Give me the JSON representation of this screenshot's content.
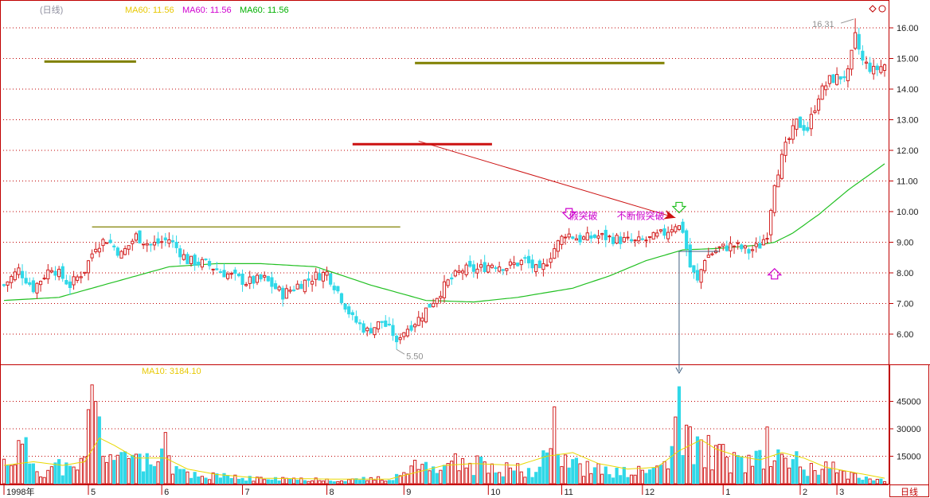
{
  "header": {
    "period_label": "(日线)",
    "ma_labels": [
      {
        "text": "MA60: 11.56",
        "color": "#e8c800"
      },
      {
        "text": "MA60: 11.56",
        "color": "#d000d0"
      },
      {
        "text": "MA60: 11.56",
        "color": "#00b000"
      }
    ],
    "vol_ma_label": "MA10: 3184.10",
    "diamond_icon": "diamond-icon"
  },
  "colors": {
    "up": "#d22020",
    "down": "#30d8e8",
    "ma_price": "#22c022",
    "ma_vol": "#e8d800",
    "axis": "#c00000",
    "grid": "#c00000",
    "level_olive": "#808000",
    "level_red": "#cc1111",
    "annotation": "#cc00cc",
    "tick_text": "#202020"
  },
  "annotations": {
    "low_label": "5.50",
    "high_label": "16.31",
    "false_break": "假突破",
    "repeated_false_break": "不断假突破"
  },
  "chart_data": [
    {
      "type": "candlestick",
      "title": "",
      "ylim": [
        5.3,
        16.5
      ],
      "grid": true,
      "y_ticks": [
        "6.00",
        "7.00",
        "8.00",
        "9.00",
        "10.00",
        "11.00",
        "12.00",
        "13.00",
        "14.00",
        "15.00",
        "16.00"
      ],
      "x_ticks": [
        {
          "label": "1998年",
          "index": 0
        },
        {
          "label": "5",
          "index": 23
        },
        {
          "label": "6",
          "index": 43
        },
        {
          "label": "7",
          "index": 65
        },
        {
          "label": "8",
          "index": 88
        },
        {
          "label": "9",
          "index": 109
        },
        {
          "label": "10",
          "index": 132
        },
        {
          "label": "11",
          "index": 152
        },
        {
          "label": "12",
          "index": 174
        },
        {
          "label": "1",
          "index": 196
        },
        {
          "label": "2",
          "index": 217
        },
        {
          "label": "3",
          "index": 227
        }
      ],
      "price_keypoints": [
        [
          0,
          7.6
        ],
        [
          4,
          8.1
        ],
        [
          8,
          7.5
        ],
        [
          13,
          8.2
        ],
        [
          18,
          7.6
        ],
        [
          22,
          8.1
        ],
        [
          25,
          8.9
        ],
        [
          28,
          9.1
        ],
        [
          32,
          8.6
        ],
        [
          36,
          9.2
        ],
        [
          40,
          8.9
        ],
        [
          45,
          9.1
        ],
        [
          50,
          8.4
        ],
        [
          55,
          8.3
        ],
        [
          60,
          8.0
        ],
        [
          66,
          7.7
        ],
        [
          71,
          7.8
        ],
        [
          76,
          7.3
        ],
        [
          80,
          7.6
        ],
        [
          85,
          7.9
        ],
        [
          88,
          8.0
        ],
        [
          91,
          7.4
        ],
        [
          95,
          6.5
        ],
        [
          99,
          6.1
        ],
        [
          103,
          6.4
        ],
        [
          107,
          5.9
        ],
        [
          110,
          6.2
        ],
        [
          113,
          6.5
        ],
        [
          117,
          7.1
        ],
        [
          121,
          7.7
        ],
        [
          125,
          8.1
        ],
        [
          129,
          8.1
        ],
        [
          133,
          8.3
        ],
        [
          137,
          8.2
        ],
        [
          142,
          8.4
        ],
        [
          146,
          8.0
        ],
        [
          150,
          8.8
        ],
        [
          153,
          9.3
        ],
        [
          157,
          9.1
        ],
        [
          162,
          9.2
        ],
        [
          167,
          9.1
        ],
        [
          172,
          9.0
        ],
        [
          176,
          9.1
        ],
        [
          180,
          9.3
        ],
        [
          183,
          9.6
        ],
        [
          185,
          9.4
        ],
        [
          187,
          8.2
        ],
        [
          189,
          7.7
        ],
        [
          191,
          8.5
        ],
        [
          195,
          8.8
        ],
        [
          199,
          8.9
        ],
        [
          203,
          8.7
        ],
        [
          206,
          8.9
        ],
        [
          208,
          9.3
        ],
        [
          210,
          11.0
        ],
        [
          213,
          12.1
        ],
        [
          216,
          12.9
        ],
        [
          219,
          12.7
        ],
        [
          222,
          13.8
        ],
        [
          225,
          14.3
        ],
        [
          228,
          14.4
        ],
        [
          230,
          14.5
        ],
        [
          232,
          15.7
        ],
        [
          234,
          14.9
        ],
        [
          237,
          14.6
        ],
        [
          240,
          14.8
        ]
      ],
      "special_points": {
        "low": {
          "index": 107,
          "value": 5.5
        },
        "high": {
          "index": 232,
          "value": 16.31
        }
      },
      "ma60_keypoints": [
        [
          0,
          7.1
        ],
        [
          15,
          7.2
        ],
        [
          30,
          7.7
        ],
        [
          45,
          8.2
        ],
        [
          58,
          8.3
        ],
        [
          70,
          8.3
        ],
        [
          85,
          8.2
        ],
        [
          100,
          7.6
        ],
        [
          115,
          7.1
        ],
        [
          128,
          7.05
        ],
        [
          140,
          7.2
        ],
        [
          155,
          7.5
        ],
        [
          165,
          7.9
        ],
        [
          175,
          8.4
        ],
        [
          185,
          8.75
        ],
        [
          195,
          8.8
        ],
        [
          205,
          8.9
        ],
        [
          210,
          9.0
        ],
        [
          215,
          9.3
        ],
        [
          222,
          9.9
        ],
        [
          230,
          10.7
        ],
        [
          240,
          11.56
        ]
      ],
      "levels": [
        {
          "name": "olive-upper-left",
          "value": 14.9,
          "from": 11,
          "to": 36
        },
        {
          "name": "olive-upper-right",
          "value": 14.85,
          "from": 112,
          "to": 180
        },
        {
          "name": "red-mid",
          "value": 12.2,
          "from": 95,
          "to": 133
        },
        {
          "name": "olive-lower",
          "value": 9.5,
          "from": 24,
          "to": 108
        }
      ]
    },
    {
      "type": "bar",
      "title": "volume",
      "ylim": [
        0,
        60000
      ],
      "y_ticks": [
        "15000",
        "30000",
        "45000"
      ],
      "volume_keypoints": [
        [
          0,
          12000
        ],
        [
          5,
          20000
        ],
        [
          10,
          7000
        ],
        [
          15,
          10000
        ],
        [
          20,
          6000
        ],
        [
          22,
          20000
        ],
        [
          24,
          45000
        ],
        [
          26,
          30000
        ],
        [
          28,
          18000
        ],
        [
          32,
          12000
        ],
        [
          35,
          20000
        ],
        [
          40,
          9000
        ],
        [
          44,
          14000
        ],
        [
          48,
          7000
        ],
        [
          55,
          4500
        ],
        [
          65,
          3000
        ],
        [
          75,
          2500
        ],
        [
          85,
          2500
        ],
        [
          95,
          2200
        ],
        [
          105,
          2800
        ],
        [
          112,
          9000
        ],
        [
          120,
          12000
        ],
        [
          130,
          10000
        ],
        [
          138,
          9000
        ],
        [
          145,
          8000
        ],
        [
          148,
          15000
        ],
        [
          152,
          18000
        ],
        [
          156,
          10000
        ],
        [
          160,
          8000
        ],
        [
          168,
          6000
        ],
        [
          176,
          7000
        ],
        [
          182,
          14000
        ],
        [
          184,
          40000
        ],
        [
          186,
          28000
        ],
        [
          188,
          20000
        ],
        [
          192,
          19000
        ],
        [
          196,
          15000
        ],
        [
          200,
          12000
        ],
        [
          205,
          12000
        ],
        [
          210,
          16000
        ],
        [
          214,
          15000
        ],
        [
          218,
          10000
        ],
        [
          222,
          9000
        ],
        [
          226,
          8000
        ],
        [
          232,
          5000
        ],
        [
          240,
          2000
        ]
      ],
      "volume_peaks": [
        [
          24,
          54000
        ],
        [
          25,
          45000
        ],
        [
          44,
          28000
        ],
        [
          150,
          42000
        ],
        [
          184,
          53000
        ],
        [
          186,
          32000
        ],
        [
          208,
          31000
        ]
      ],
      "ma10_keypoints": [
        [
          0,
          10000
        ],
        [
          8,
          12000
        ],
        [
          16,
          10000
        ],
        [
          22,
          12000
        ],
        [
          26,
          25000
        ],
        [
          30,
          21000
        ],
        [
          36,
          14000
        ],
        [
          44,
          14000
        ],
        [
          50,
          8000
        ],
        [
          58,
          5000
        ],
        [
          70,
          3000
        ],
        [
          90,
          2500
        ],
        [
          105,
          2500
        ],
        [
          112,
          6000
        ],
        [
          120,
          10000
        ],
        [
          128,
          11000
        ],
        [
          140,
          10000
        ],
        [
          148,
          15000
        ],
        [
          155,
          17000
        ],
        [
          162,
          11000
        ],
        [
          170,
          8000
        ],
        [
          178,
          9000
        ],
        [
          184,
          18000
        ],
        [
          190,
          24000
        ],
        [
          194,
          19000
        ],
        [
          200,
          15000
        ],
        [
          206,
          13000
        ],
        [
          212,
          17000
        ],
        [
          218,
          14000
        ],
        [
          224,
          9000
        ],
        [
          232,
          6000
        ],
        [
          240,
          3000
        ]
      ]
    }
  ],
  "footer": {
    "period_tab": "日线"
  }
}
